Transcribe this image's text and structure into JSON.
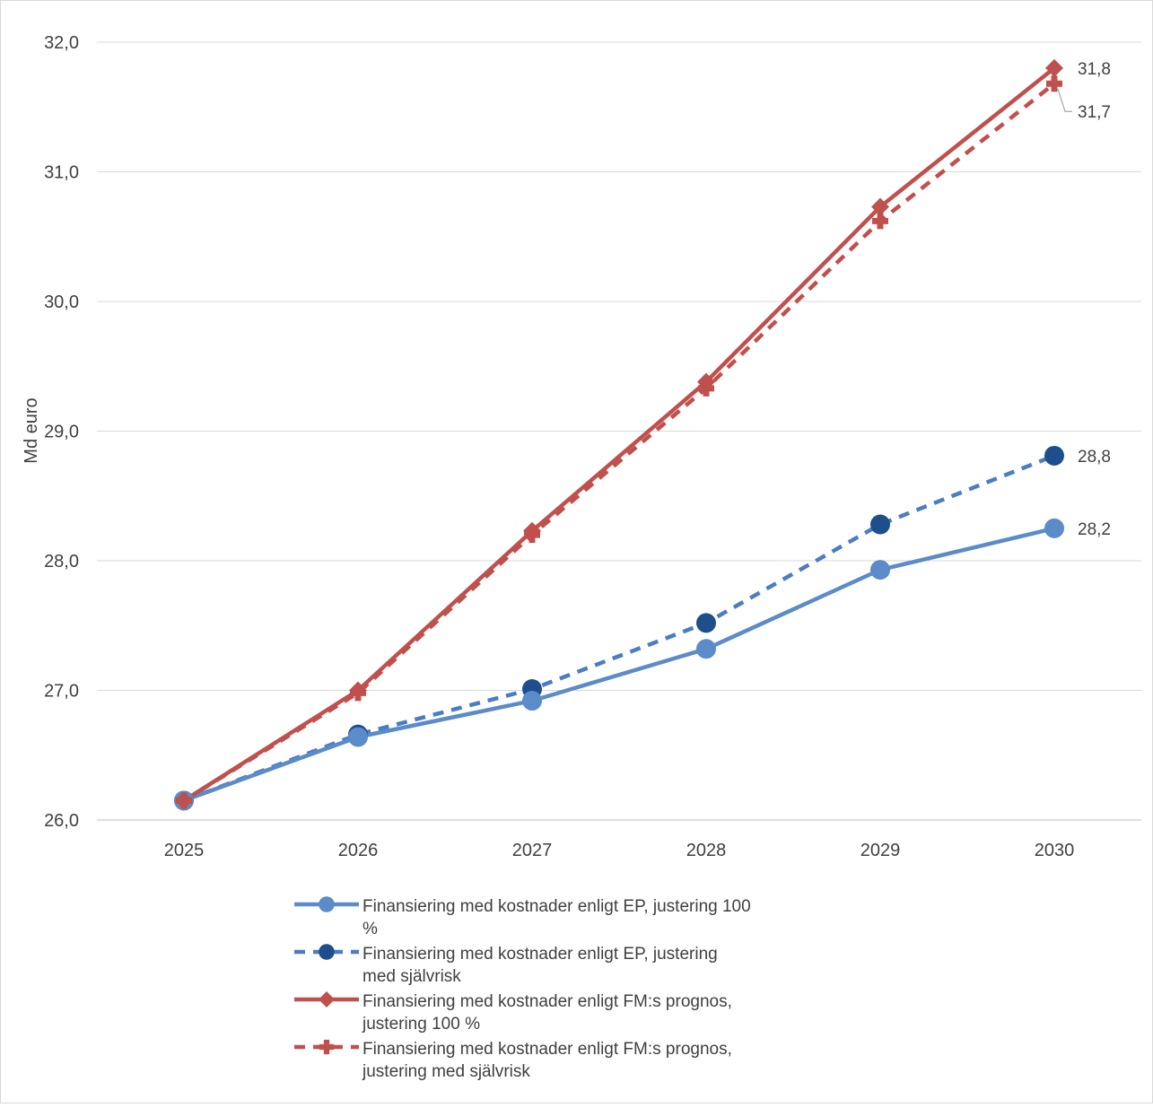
{
  "chart_data": {
    "type": "line",
    "title": "",
    "xlabel": "",
    "ylabel": "Md euro",
    "x": [
      "2025",
      "2026",
      "2027",
      "2028",
      "2029",
      "2030"
    ],
    "ylim": [
      26.0,
      32.0
    ],
    "yticks": [
      "26,0",
      "27,0",
      "28,0",
      "29,0",
      "30,0",
      "31,0",
      "32,0"
    ],
    "grid": "horizontal",
    "legend_position": "bottom",
    "series": [
      {
        "name": "Finansiering med kostnader enligt EP, justering 100 %",
        "legend_lines": [
          "Finansiering med kostnader enligt EP, justering 100",
          "%"
        ],
        "values": [
          26.15,
          26.64,
          26.92,
          27.32,
          27.93,
          28.25
        ],
        "color": "#5B8BC9",
        "line": "solid",
        "marker": "circle",
        "end_label": "28,2"
      },
      {
        "name": "Finansiering med kostnader enligt EP, justering med självrisk",
        "legend_lines": [
          "Finansiering med kostnader enligt EP, justering",
          "med självrisk"
        ],
        "values": [
          26.15,
          26.66,
          27.01,
          27.52,
          28.28,
          28.81
        ],
        "color": "#1F4E8C",
        "line_color": "#4A7EC2",
        "line": "dashed",
        "marker": "circle",
        "end_label": "28,8"
      },
      {
        "name": "Finansiering med kostnader enligt FM:s prognos, justering 100 %",
        "legend_lines": [
          "Finansiering med kostnader enligt FM:s prognos,",
          "justering 100 %"
        ],
        "values": [
          26.15,
          27.0,
          28.23,
          29.38,
          30.73,
          31.8
        ],
        "color": "#C0504D",
        "line": "solid",
        "marker": "diamond",
        "end_label": "31,8"
      },
      {
        "name": "Finansiering med kostnader enligt FM:s prognos, justering med självrisk",
        "legend_lines": [
          "Finansiering med kostnader enligt FM:s prognos,",
          "justering med självrisk"
        ],
        "values": [
          26.15,
          26.98,
          28.2,
          29.33,
          30.62,
          31.68
        ],
        "color": "#C0504D",
        "line": "dashed",
        "marker": "plus",
        "end_label": "31,7"
      }
    ]
  }
}
